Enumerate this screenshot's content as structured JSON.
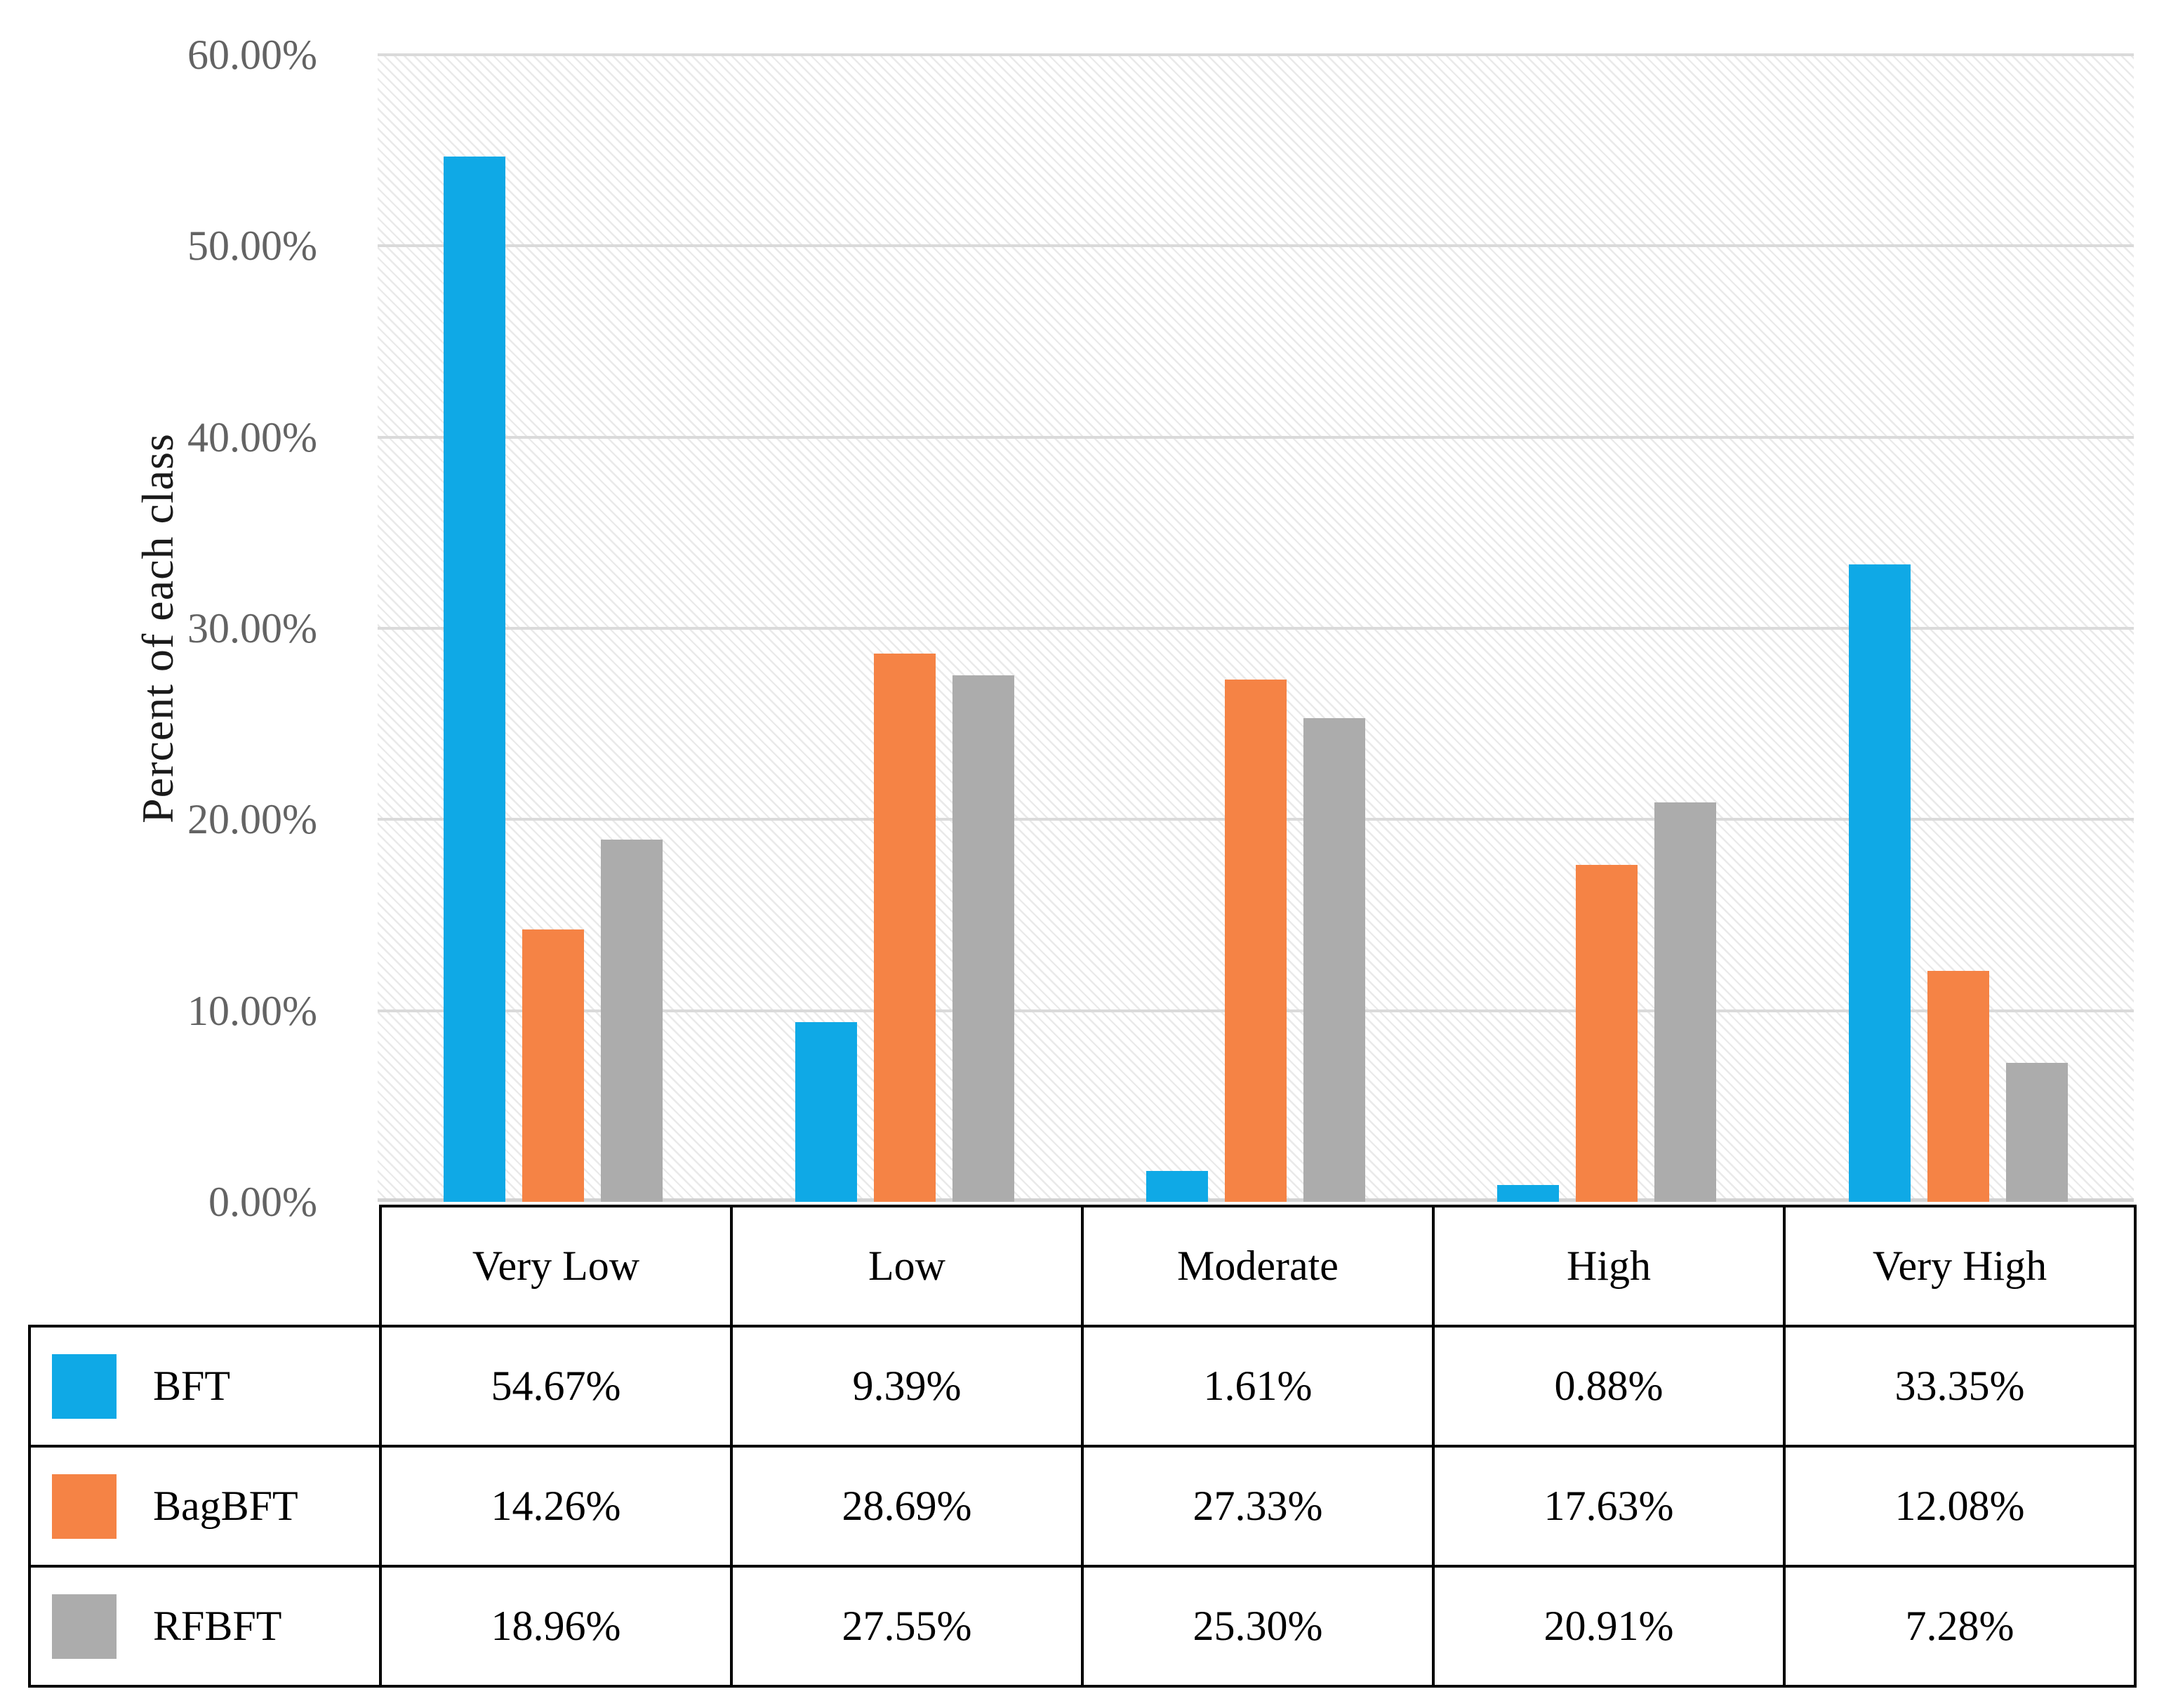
{
  "chart_data": {
    "type": "bar",
    "title": "",
    "xlabel": "",
    "ylabel": "Percent of each class",
    "categories": [
      "Very Low",
      "Low",
      "Moderate",
      "High",
      "Very High"
    ],
    "series": [
      {
        "name": "BFT",
        "color": "#0FA9E6",
        "values": [
          54.67,
          9.39,
          1.61,
          0.88,
          33.35
        ],
        "labels": [
          "54.67%",
          "9.39%",
          "1.61%",
          "0.88%",
          "33.35%"
        ]
      },
      {
        "name": "BagBFT",
        "color": "#F58345",
        "values": [
          14.26,
          28.69,
          27.33,
          17.63,
          12.08
        ],
        "labels": [
          "14.26%",
          "28.69%",
          "27.33%",
          "17.63%",
          "12.08%"
        ]
      },
      {
        "name": "RFBFT",
        "color": "#ACACAC",
        "values": [
          18.96,
          27.55,
          25.3,
          20.91,
          7.28
        ],
        "labels": [
          "18.96%",
          "27.55%",
          "25.30%",
          "20.91%",
          "7.28%"
        ]
      }
    ],
    "ylim": [
      0,
      60
    ],
    "ytick_step": 10,
    "yticks": [
      "0.00%",
      "10.00%",
      "20.00%",
      "30.00%",
      "40.00%",
      "50.00%",
      "60.00%"
    ],
    "grid": true,
    "plot_background": "light-downward-diagonal-hatch",
    "legend_position": "data-table-left-column"
  },
  "style": {
    "bar_blue": "#0FA9E6",
    "bar_orange": "#F58345",
    "bar_gray": "#ACACAC",
    "gridline_color": "#DADADA",
    "axis_line_color": "#D2D2D2",
    "tick_text_color": "#636363",
    "table_border_color": "#000000",
    "table_text_color": "#000000"
  }
}
